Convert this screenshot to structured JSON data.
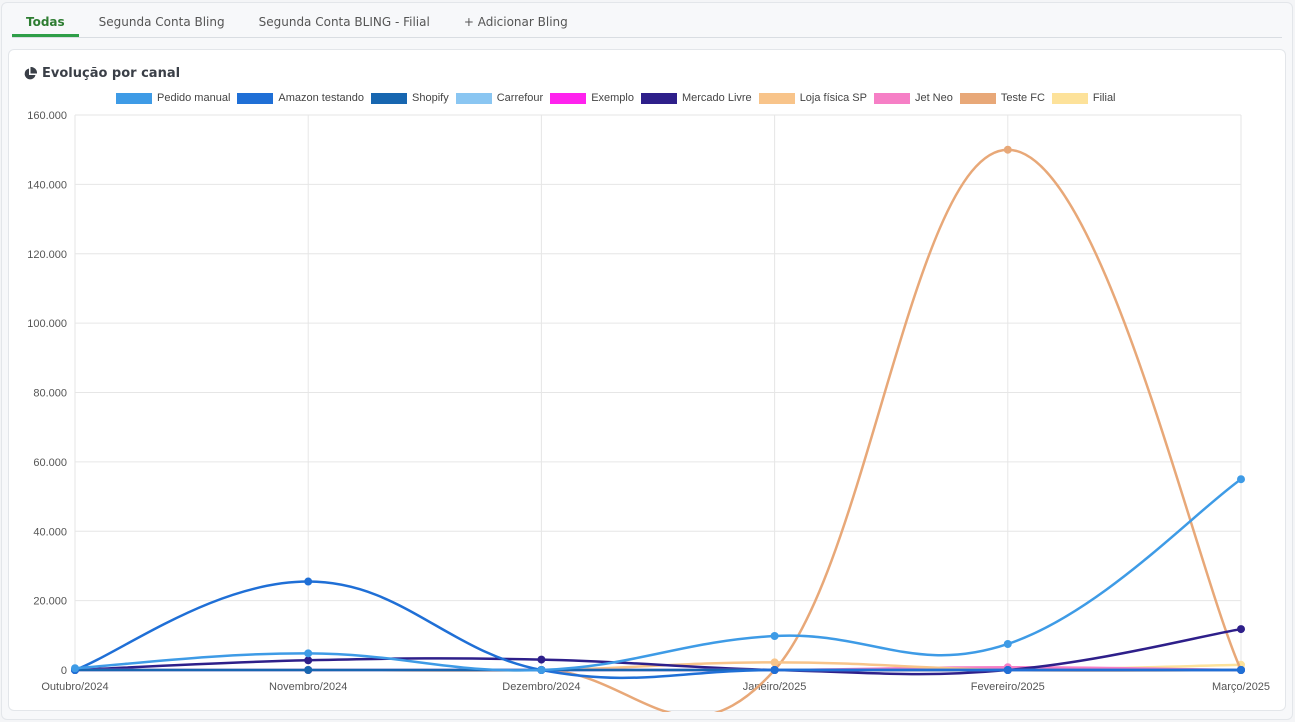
{
  "tabs": [
    {
      "label": "Todas",
      "active": true
    },
    {
      "label": "Segunda Conta Bling",
      "active": false
    },
    {
      "label": "Segunda Conta BLING - Filial",
      "active": false
    },
    {
      "label": "+ Adicionar Bling",
      "active": false
    }
  ],
  "card": {
    "title": "Evolução por canal",
    "icon": "pie-chart-icon"
  },
  "chart_data": {
    "type": "line",
    "title": "Evolução por canal",
    "xlabel": "",
    "ylabel": "",
    "categories": [
      "Outubro/2024",
      "Novembro/2024",
      "Dezembro/2024",
      "Janeiro/2025",
      "Fevereiro/2025",
      "Março/2025"
    ],
    "ylim": [
      0,
      160000
    ],
    "y_ticks": [
      "0",
      "20.000",
      "40.000",
      "60.000",
      "80.000",
      "100.000",
      "120.000",
      "140.000",
      "160.000"
    ],
    "y_tick_values": [
      0,
      20000,
      40000,
      60000,
      80000,
      100000,
      120000,
      140000,
      160000
    ],
    "grid": true,
    "legend_position": "top",
    "series": [
      {
        "name": "Pedido manual",
        "color": "#3e9be6",
        "values": [
          500,
          4800,
          0,
          9800,
          7500,
          55000
        ]
      },
      {
        "name": "Amazon testando",
        "color": "#1f6fd6",
        "values": [
          0,
          25500,
          0,
          0,
          0,
          0
        ]
      },
      {
        "name": "Shopify",
        "color": "#1766b0",
        "values": [
          0,
          0,
          0,
          0,
          0,
          0
        ]
      },
      {
        "name": "Carrefour",
        "color": "#8ac6f2",
        "values": [
          0,
          0,
          0,
          0,
          0,
          0
        ]
      },
      {
        "name": "Exemplo",
        "color": "#ff22ee",
        "values": [
          0,
          0,
          0,
          0,
          0,
          0
        ]
      },
      {
        "name": "Mercado Livre",
        "color": "#2e1f8a",
        "values": [
          0,
          2800,
          3000,
          0,
          0,
          11800
        ]
      },
      {
        "name": "Loja física SP",
        "color": "#f8c48a",
        "values": [
          0,
          0,
          0,
          2200,
          0,
          0
        ]
      },
      {
        "name": "Jet Neo",
        "color": "#f67fc6",
        "values": [
          0,
          0,
          0,
          0,
          800,
          0
        ]
      },
      {
        "name": "Teste FC",
        "color": "#e8a878",
        "values": [
          0,
          0,
          0,
          0,
          150000,
          0
        ]
      },
      {
        "name": "Filial",
        "color": "#fde29a",
        "values": [
          0,
          0,
          0,
          0,
          0,
          1500
        ]
      }
    ]
  }
}
